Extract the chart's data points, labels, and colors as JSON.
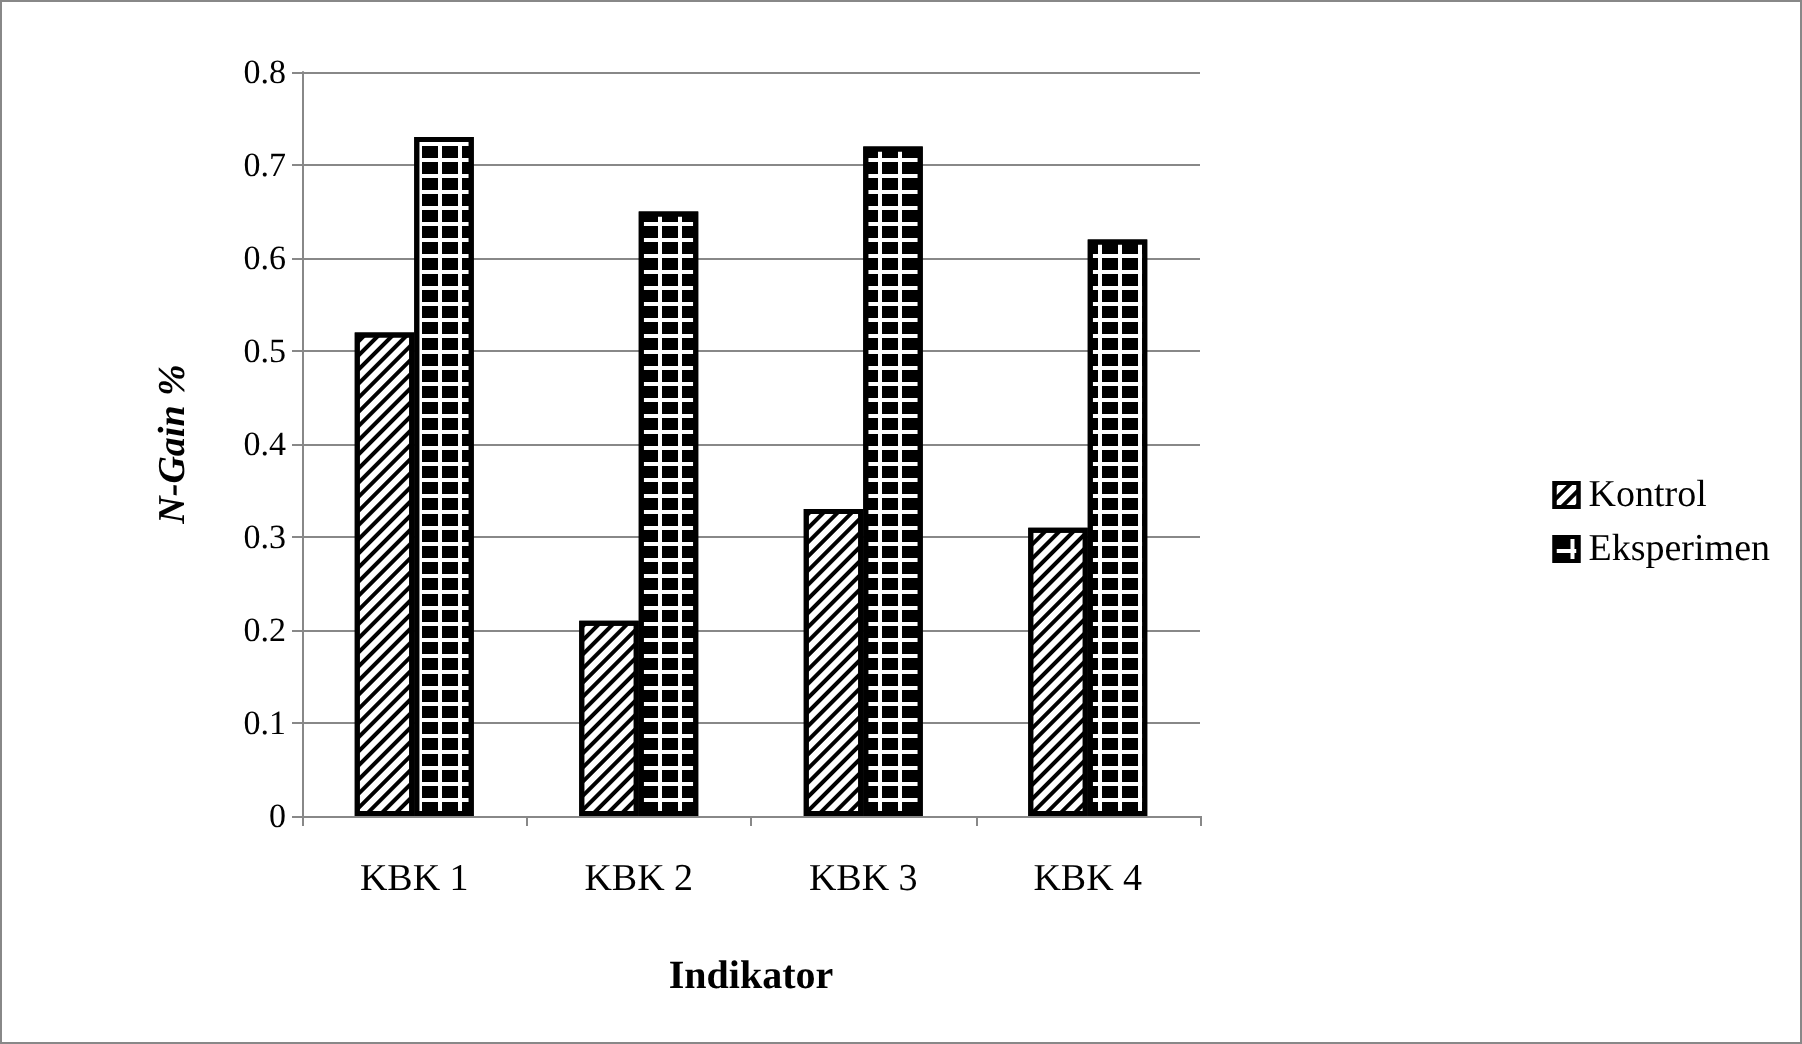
{
  "chart_data": {
    "type": "bar",
    "xlabel": "Indikator",
    "ylabel": "N-Gain %",
    "categories": [
      "KBK 1",
      "KBK 2",
      "KBK 3",
      "KBK 4"
    ],
    "series": [
      {
        "name": "Kontrol",
        "color": "#ffffff",
        "values": [
          0.52,
          0.21,
          0.33,
          0.31
        ]
      },
      {
        "name": "Eksperimen",
        "color": "#ffffff",
        "values": [
          0.73,
          0.65,
          0.72,
          0.62
        ]
      }
    ],
    "ylim": [
      0,
      0.8
    ],
    "yticks": [
      0,
      0.1,
      0.2,
      0.3,
      0.4,
      0.5,
      0.6,
      0.7,
      0.8
    ],
    "grid": "y",
    "legend": "right"
  }
}
